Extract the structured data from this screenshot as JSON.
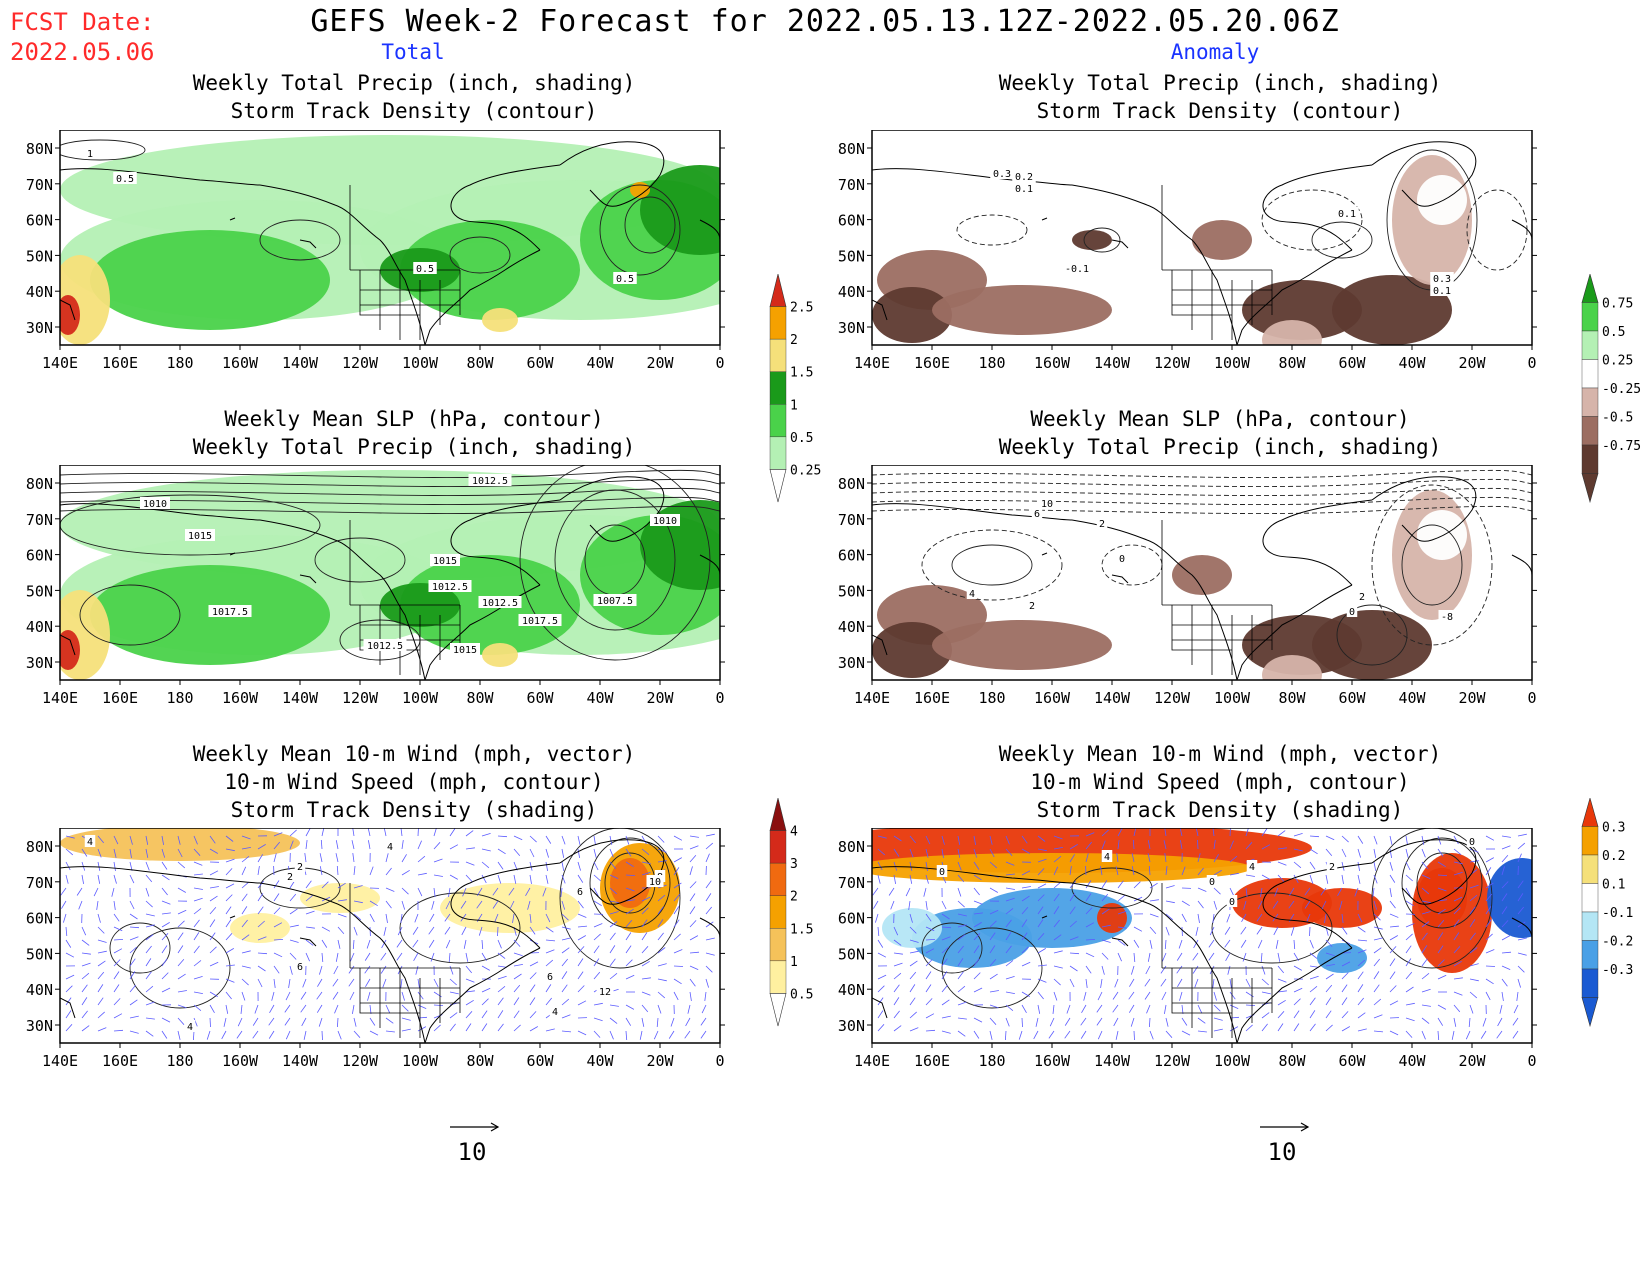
{
  "header": {
    "fcst_label": "FCST Date:",
    "fcst_date": "2022.05.06",
    "title": "GEFS Week-2 Forecast for 2022.05.13.12Z-2022.05.20.06Z",
    "left_column": "Total",
    "right_column": "Anomaly"
  },
  "axes": {
    "lat_labels": [
      "80N",
      "70N",
      "60N",
      "50N",
      "40N",
      "30N"
    ],
    "lon_labels": [
      "140E",
      "160E",
      "180",
      "160W",
      "140W",
      "120W",
      "100W",
      "80W",
      "60W",
      "40W",
      "20W",
      "0"
    ]
  },
  "panels": {
    "p1": {
      "line1": "Weekly Total Precip (inch, shading)",
      "line2": "Storm Track Density (contour)",
      "labels": [
        "1",
        "0.5",
        "0.5",
        "0.5"
      ]
    },
    "p2": {
      "line1": "Weekly Total Precip (inch, shading)",
      "line2": "Storm Track Density (contour)",
      "labels": [
        "0.3",
        "0.2",
        "0.1",
        "-0.1",
        "0.1",
        "0.3",
        "0.1"
      ]
    },
    "p3": {
      "line1": "Weekly Mean SLP (hPa, contour)",
      "line2": "Weekly Total Precip (inch, shading)",
      "labels": [
        "1012.5",
        "1010",
        "1015",
        "1015",
        "1012.5",
        "1012.5",
        "1017.5",
        "1017.5",
        "1012.5",
        "1015",
        "1007.5",
        "1010"
      ]
    },
    "p4": {
      "line1": "Weekly Mean SLP (hPa, contour)",
      "line2": "Weekly Total Precip (inch, shading)",
      "labels": [
        "10",
        "6",
        "2",
        "4",
        "2",
        "0",
        "2",
        "0",
        "-8"
      ]
    },
    "p5": {
      "line1": "Weekly Mean 10-m Wind (mph, vector)",
      "line2": "10-m Wind Speed (mph, contour)",
      "line3": "Storm Track Density (shading)",
      "labels": [
        "4",
        "4",
        "2",
        "2",
        "8",
        "6",
        "10",
        "12",
        "6",
        "4",
        "6",
        "4"
      ]
    },
    "p6": {
      "line1": "Weekly Mean 10-m Wind (mph, vector)",
      "line2": "10-m Wind Speed (mph, contour)",
      "line3": "Storm Track Density (shading)",
      "labels": [
        "4",
        "0",
        "0",
        "0",
        "2",
        "4",
        "0"
      ]
    }
  },
  "legends": {
    "precip_total": {
      "labels": [
        "2.5",
        "2",
        "1.5",
        "1",
        "0.5",
        "0.25"
      ],
      "colors": [
        "#d42a1a",
        "#f5a100",
        "#f5e07a",
        "#1a9a1a",
        "#4ad24a",
        "#b4f0b4"
      ]
    },
    "precip_anom": {
      "labels": [
        "0.75",
        "0.5",
        "0.25",
        "-0.25",
        "-0.5",
        "-0.75"
      ],
      "colors": [
        "#1a9a1a",
        "#4ad24a",
        "#b4f0b4",
        "#ffffff",
        "#d6b4aa",
        "#9c6e62",
        "#5e3a30"
      ]
    },
    "storm_total": {
      "labels": [
        "4",
        "3",
        "2",
        "1.5",
        "1",
        "0.5"
      ],
      "colors": [
        "#8a1010",
        "#d42a1a",
        "#f06a10",
        "#f5a100",
        "#f5c25a",
        "#fff0a0"
      ]
    },
    "storm_anom": {
      "labels": [
        "0.3",
        "0.2",
        "0.1",
        "-0.1",
        "-0.2",
        "-0.3"
      ],
      "colors": [
        "#e8380a",
        "#f5a100",
        "#f5e07a",
        "#ffffff",
        "#b4e6f5",
        "#4aa0e6",
        "#1a5ad2"
      ]
    }
  },
  "vector_refs": {
    "left": "10",
    "right": "10"
  }
}
